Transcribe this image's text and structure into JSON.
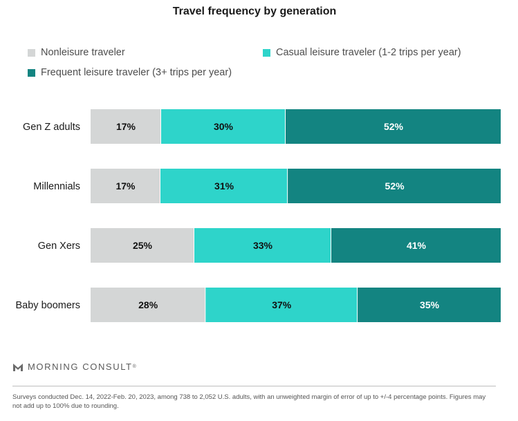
{
  "colors": {
    "nonleisure": "#d4d6d6",
    "casual": "#2ed4ca",
    "frequent": "#138481"
  },
  "brand": {
    "name": "MORNING CONSULT",
    "mark": "®"
  },
  "footnote": "Surveys conducted Dec. 14, 2022-Feb. 20, 2023, among 738 to 2,052 U.S. adults, with an unweighted margin of error of up to +/-4 percentage points. Figures may not add up to 100% due to rounding.",
  "chart_data": {
    "type": "bar",
    "orientation": "horizontal",
    "stacked": true,
    "title": "Travel frequency by generation",
    "categories": [
      "Gen Z adults",
      "Millennials",
      "Gen Xers",
      "Baby boomers"
    ],
    "series": [
      {
        "name": "Nonleisure traveler",
        "values": [
          17,
          17,
          25,
          28
        ],
        "labels": [
          "17%",
          "17%",
          "25%",
          "28%"
        ],
        "color": "#d4d6d6",
        "label_color": "#111111"
      },
      {
        "name": "Casual leisure traveler (1-2 trips per year)",
        "values": [
          30,
          31,
          33,
          37
        ],
        "labels": [
          "30%",
          "31%",
          "33%",
          "37%"
        ],
        "color": "#2ed4ca",
        "label_color": "#111111"
      },
      {
        "name": "Frequent leisure traveler (3+ trips per year)",
        "values": [
          52,
          52,
          41,
          35
        ],
        "labels": [
          "52%",
          "52%",
          "41%",
          "35%"
        ],
        "color": "#138481",
        "label_color": "#ffffff"
      }
    ],
    "legend_position": "top",
    "grid": false
  }
}
